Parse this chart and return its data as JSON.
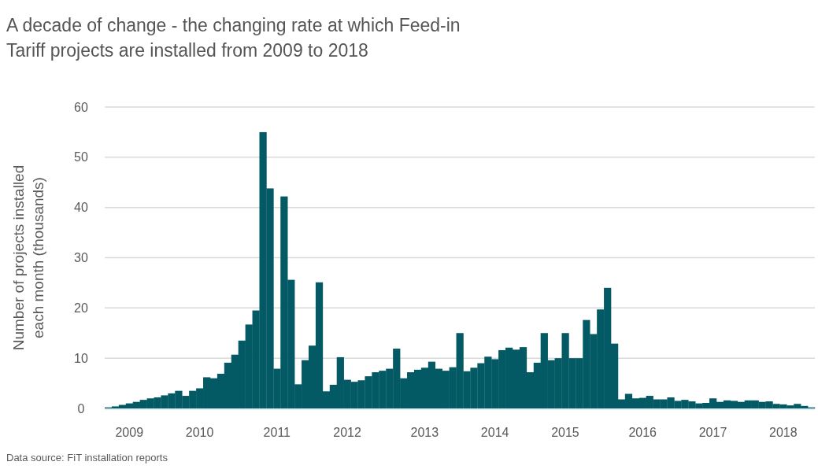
{
  "chart_data": {
    "type": "bar",
    "title": "A decade of change - the changing rate at which Feed-in Tariff projects are installed from 2009 to 2018",
    "ylabel": "Number of projects installed each month (thousands)",
    "annotations": [
      "Data source: FiT installation reports"
    ],
    "categories": [
      null,
      null,
      null,
      "2009",
      null,
      null,
      null,
      null,
      null,
      null,
      null,
      null,
      null,
      "2010",
      null,
      null,
      null,
      null,
      null,
      null,
      null,
      null,
      null,
      null,
      "2011",
      null,
      null,
      null,
      null,
      null,
      null,
      null,
      null,
      null,
      "2012",
      null,
      null,
      null,
      null,
      null,
      null,
      null,
      null,
      null,
      null,
      "2013",
      null,
      null,
      null,
      null,
      null,
      null,
      null,
      null,
      null,
      "2014",
      null,
      null,
      null,
      null,
      null,
      null,
      null,
      null,
      null,
      "2015",
      null,
      null,
      null,
      null,
      null,
      null,
      null,
      null,
      null,
      null,
      "2016",
      null,
      null,
      null,
      null,
      null,
      null,
      null,
      null,
      null,
      "2017",
      null,
      null,
      null,
      null,
      null,
      null,
      null,
      null,
      null,
      "2018",
      null,
      null,
      null,
      null
    ],
    "values": [
      0.2,
      0.4,
      0.7,
      1.0,
      1.3,
      1.7,
      2.0,
      2.2,
      2.6,
      3.0,
      3.5,
      2.5,
      3.5,
      4.0,
      6.2,
      6.0,
      6.9,
      9.1,
      10.7,
      13.5,
      16.7,
      19.5,
      55,
      43.8,
      7.9,
      42.2,
      25.6,
      4.8,
      9.6,
      12.5,
      25.1,
      3.4,
      4.7,
      10.2,
      5.7,
      5.3,
      5.6,
      6.4,
      7.2,
      7.5,
      7.9,
      11.9,
      6.0,
      7.2,
      7.7,
      8.1,
      9.3,
      7.9,
      7.5,
      8.2,
      15,
      7.4,
      8.1,
      9.0,
      10.3,
      9.8,
      11.6,
      12.1,
      11.7,
      12.2,
      7.2,
      9.1,
      15,
      9.6,
      10,
      15,
      10,
      10,
      17.6,
      14.8,
      19.7,
      24,
      12.9,
      1.8,
      2.9,
      2.0,
      2.1,
      2.5,
      1.8,
      1.8,
      2.2,
      1.5,
      1.7,
      1.4,
      1.0,
      1.1,
      2.0,
      1.3,
      1.6,
      1.5,
      1.3,
      1.6,
      1.6,
      1.3,
      1.4,
      0.9,
      0.8,
      0.6,
      0.9,
      0.5,
      0.2
    ],
    "color": "#035a64",
    "ylim": [
      0,
      60
    ],
    "yticks": [
      0,
      10,
      20,
      30,
      40,
      50,
      60
    ],
    "grid": "y"
  }
}
